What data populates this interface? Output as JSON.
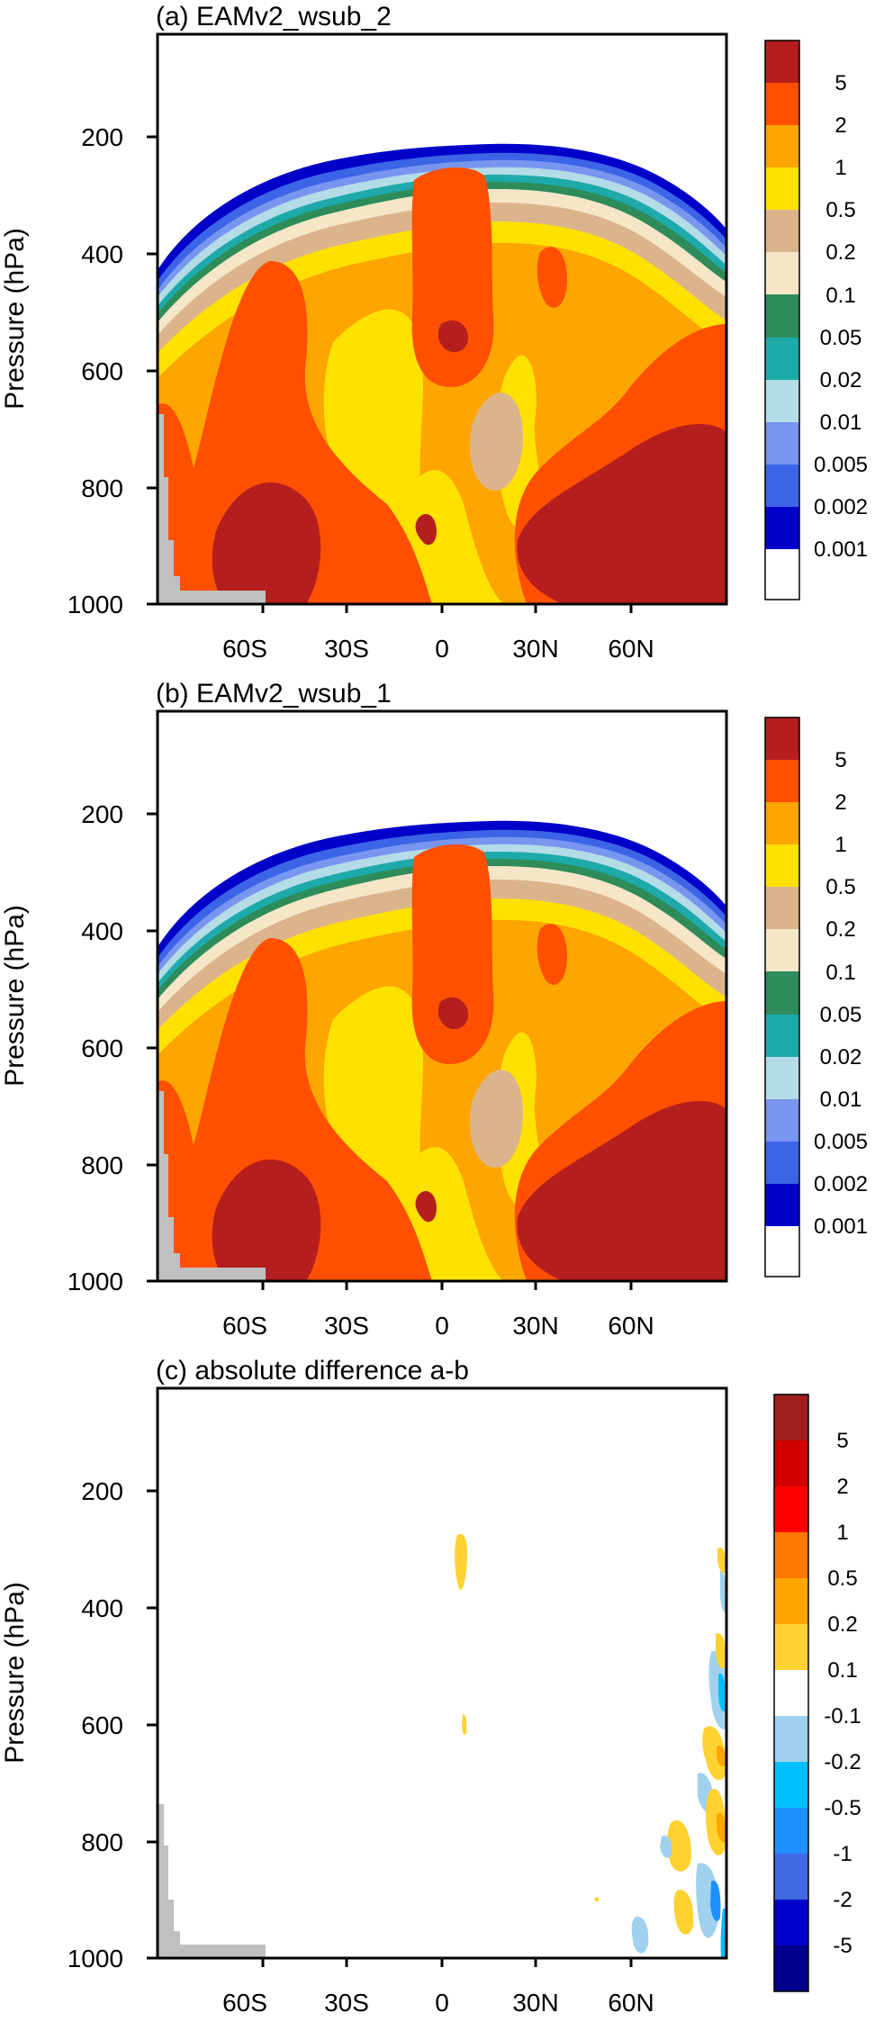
{
  "colors": {
    "positive_scale": [
      "#ffffff",
      "#0000c8",
      "#3c64e6",
      "#7896f0",
      "#b4dce6",
      "#1eaaaa",
      "#2d8c5a",
      "#f5e6c8",
      "#dcb48c",
      "#ffe100",
      "#ffa500",
      "#ff5000",
      "#b41e1e"
    ],
    "diff_scale": [
      "#00008b",
      "#0000cd",
      "#4169e1",
      "#1e90ff",
      "#00bfff",
      "#a0d2f0",
      "#ffffff",
      "#ffd232",
      "#ffa500",
      "#ff7800",
      "#ff0000",
      "#d20000",
      "#a01e1e"
    ],
    "missing": "#c0c0c0"
  },
  "chart_data": [
    {
      "type": "heatmap",
      "title": "(a) EAMv2_wsub_2",
      "ylabel": "Pressure (hPa)",
      "xlabel": "",
      "x_ticks": [
        "60S",
        "30S",
        "0",
        "30N",
        "60N"
      ],
      "x_tick_values": [
        -60,
        -30,
        0,
        30,
        60
      ],
      "y_ticks": [
        "200",
        "400",
        "600",
        "800",
        "1000"
      ],
      "y_tick_values": [
        200,
        400,
        600,
        800,
        1000
      ],
      "xlim": [
        -90,
        90
      ],
      "ylim": [
        1000,
        25
      ],
      "colorbar_labels": [
        "5",
        "2",
        "1",
        "0.5",
        "0.2",
        "0.1",
        "0.05",
        "0.02",
        "0.01",
        "0.005",
        "0.002",
        "0.001"
      ],
      "colorbar_levels": [
        0.001,
        0.002,
        0.005,
        0.01,
        0.02,
        0.05,
        0.1,
        0.2,
        0.5,
        1,
        2,
        5
      ],
      "features": {
        "tropopause_top_hPa_at_equator": 230,
        "deep_core_max_level": 5,
        "note_regions": [
          "SH mid-latitude lower troposphere > 5",
          "NH high-latitude lower troposphere > 5",
          "tropical upper troposphere 2-5"
        ]
      }
    },
    {
      "type": "heatmap",
      "title": "(b) EAMv2_wsub_1",
      "ylabel": "Pressure (hPa)",
      "xlabel": "",
      "x_ticks": [
        "60S",
        "30S",
        "0",
        "30N",
        "60N"
      ],
      "x_tick_values": [
        -60,
        -30,
        0,
        30,
        60
      ],
      "y_ticks": [
        "200",
        "400",
        "600",
        "800",
        "1000"
      ],
      "y_tick_values": [
        200,
        400,
        600,
        800,
        1000
      ],
      "xlim": [
        -90,
        90
      ],
      "ylim": [
        1000,
        25
      ],
      "colorbar_labels": [
        "5",
        "2",
        "1",
        "0.5",
        "0.2",
        "0.1",
        "0.05",
        "0.02",
        "0.01",
        "0.005",
        "0.002",
        "0.001"
      ],
      "colorbar_levels": [
        0.001,
        0.002,
        0.005,
        0.01,
        0.02,
        0.05,
        0.1,
        0.2,
        0.5,
        1,
        2,
        5
      ]
    },
    {
      "type": "heatmap",
      "title": "(c) absolute difference a-b",
      "ylabel": "Pressure (hPa)",
      "xlabel": "",
      "x_ticks": [
        "60S",
        "30S",
        "0",
        "30N",
        "60N"
      ],
      "x_tick_values": [
        -60,
        -30,
        0,
        30,
        60
      ],
      "y_ticks": [
        "200",
        "400",
        "600",
        "800",
        "1000"
      ],
      "y_tick_values": [
        200,
        400,
        600,
        800,
        1000
      ],
      "xlim": [
        -90,
        90
      ],
      "ylim": [
        1000,
        25
      ],
      "colorbar_labels": [
        "5",
        "2",
        "1",
        "0.5",
        "0.2",
        "0.1",
        "-0.1",
        "-0.2",
        "-0.5",
        "-1",
        "-2",
        "-5"
      ],
      "colorbar_levels": [
        -5,
        -2,
        -1,
        -0.5,
        -0.2,
        -0.1,
        0.1,
        0.2,
        0.5,
        1,
        2,
        5
      ]
    }
  ]
}
